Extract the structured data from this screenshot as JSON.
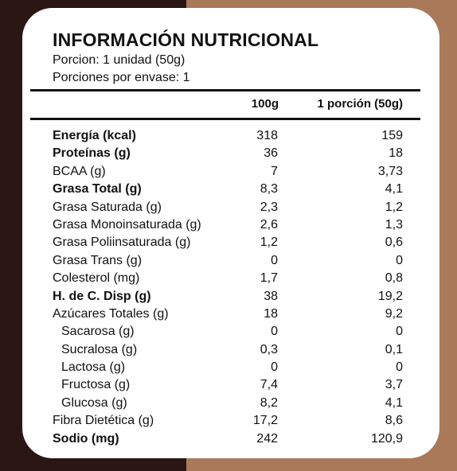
{
  "title": "INFORMACIÓN NUTRICIONAL",
  "serving": "Porcion: 1 unidad (50g)",
  "servings_per_container": "Porciones por envase: 1",
  "columns": {
    "per100": "100g",
    "per_portion": "1 porción (50g)"
  },
  "rows": [
    {
      "label": "Energía (kcal)",
      "per100": "318",
      "per_portion": "159",
      "bold": true,
      "indent": false
    },
    {
      "label": "Proteínas (g)",
      "per100": "36",
      "per_portion": "18",
      "bold": true,
      "indent": false
    },
    {
      "label": "BCAA (g)",
      "per100": "7",
      "per_portion": "3,73",
      "bold": false,
      "indent": false
    },
    {
      "label": "Grasa Total (g)",
      "per100": "8,3",
      "per_portion": "4,1",
      "bold": true,
      "indent": false
    },
    {
      "label": "Grasa Saturada (g)",
      "per100": "2,3",
      "per_portion": "1,2",
      "bold": false,
      "indent": false
    },
    {
      "label": "Grasa Monoinsaturada (g)",
      "per100": "2,6",
      "per_portion": "1,3",
      "bold": false,
      "indent": false
    },
    {
      "label": "Grasa Poliinsaturada (g)",
      "per100": "1,2",
      "per_portion": "0,6",
      "bold": false,
      "indent": false
    },
    {
      "label": "Grasa Trans (g)",
      "per100": "0",
      "per_portion": "0",
      "bold": false,
      "indent": false
    },
    {
      "label": "Colesterol (mg)",
      "per100": "1,7",
      "per_portion": "0,8",
      "bold": false,
      "indent": false
    },
    {
      "label": "H. de C. Disp (g)",
      "per100": "38",
      "per_portion": "19,2",
      "bold": true,
      "indent": false
    },
    {
      "label": "Azúcares Totales (g)",
      "per100": "18",
      "per_portion": "9,2",
      "bold": false,
      "indent": false
    },
    {
      "label": "Sacarosa (g)",
      "per100": "0",
      "per_portion": "0",
      "bold": false,
      "indent": true
    },
    {
      "label": "Sucralosa (g)",
      "per100": "0,3",
      "per_portion": "0,1",
      "bold": false,
      "indent": true
    },
    {
      "label": "Lactosa (g)",
      "per100": "0",
      "per_portion": "0",
      "bold": false,
      "indent": true
    },
    {
      "label": "Fructosa (g)",
      "per100": "7,4",
      "per_portion": "3,7",
      "bold": false,
      "indent": true
    },
    {
      "label": "Glucosa (g)",
      "per100": "8,2",
      "per_portion": "4,1",
      "bold": false,
      "indent": true
    },
    {
      "label": "Fibra Dietética (g)",
      "per100": "17,2",
      "per_portion": "8,6",
      "bold": false,
      "indent": false
    },
    {
      "label": "Sodio (mg)",
      "per100": "242",
      "per_portion": "120,9",
      "bold": true,
      "indent": false
    }
  ],
  "colors": {
    "left_background": "#2a1612",
    "right_background": "#a9795a",
    "card": "#ffffff"
  }
}
